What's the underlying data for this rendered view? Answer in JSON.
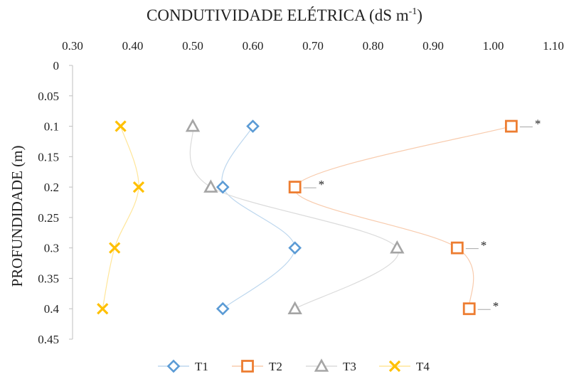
{
  "chart_data": {
    "type": "scatter",
    "title": "CONDUTIVIDADE ELÉTRICA (dS m",
    "title_sup": "-1",
    "title_close": ")",
    "xlabel": "CONDUTIVIDADE ELÉTRICA (dS m-1)",
    "ylabel": "PROFUNDIDADE (m)",
    "x_axis_position": "top",
    "y_axis_inverted": true,
    "xlim": [
      0.3,
      1.1
    ],
    "ylim": [
      0,
      0.45
    ],
    "x_ticks": [
      "0.30",
      "0.40",
      "0.50",
      "0.60",
      "0.70",
      "0.80",
      "0.90",
      "1.00",
      "1.10"
    ],
    "y_ticks": [
      "0",
      "0.05",
      "0.1",
      "0.15",
      "0.2",
      "0.25",
      "0.3",
      "0.35",
      "0.4",
      "0.45"
    ],
    "grid": false,
    "legend_position": "bottom",
    "series": [
      {
        "name": "T1",
        "marker": "diamond",
        "color": "#5b9bd5",
        "line_color": "#bdd7ee",
        "points": [
          [
            0.6,
            0.1
          ],
          [
            0.55,
            0.2
          ],
          [
            0.67,
            0.3
          ],
          [
            0.55,
            0.4
          ]
        ]
      },
      {
        "name": "T2",
        "marker": "square",
        "color": "#ed7d31",
        "line_color": "#f8cbad",
        "points": [
          [
            1.03,
            0.1
          ],
          [
            0.67,
            0.2
          ],
          [
            0.94,
            0.3
          ],
          [
            0.96,
            0.4
          ]
        ]
      },
      {
        "name": "T3",
        "marker": "triangle",
        "color": "#a5a5a5",
        "line_color": "#dbdbdb",
        "points": [
          [
            0.5,
            0.1
          ],
          [
            0.53,
            0.2
          ],
          [
            0.84,
            0.3
          ],
          [
            0.67,
            0.4
          ]
        ]
      },
      {
        "name": "T4",
        "marker": "x",
        "color": "#ffc000",
        "line_color": "#ffe699",
        "points": [
          [
            0.38,
            0.1
          ],
          [
            0.41,
            0.2
          ],
          [
            0.37,
            0.3
          ],
          [
            0.35,
            0.4
          ]
        ]
      }
    ],
    "annotations": [
      {
        "text": "*",
        "series": "T2",
        "point_index": 0
      },
      {
        "text": "*",
        "series": "T2",
        "point_index": 1
      },
      {
        "text": "*",
        "series": "T2",
        "point_index": 2
      },
      {
        "text": "*",
        "series": "T2",
        "point_index": 3
      }
    ]
  }
}
